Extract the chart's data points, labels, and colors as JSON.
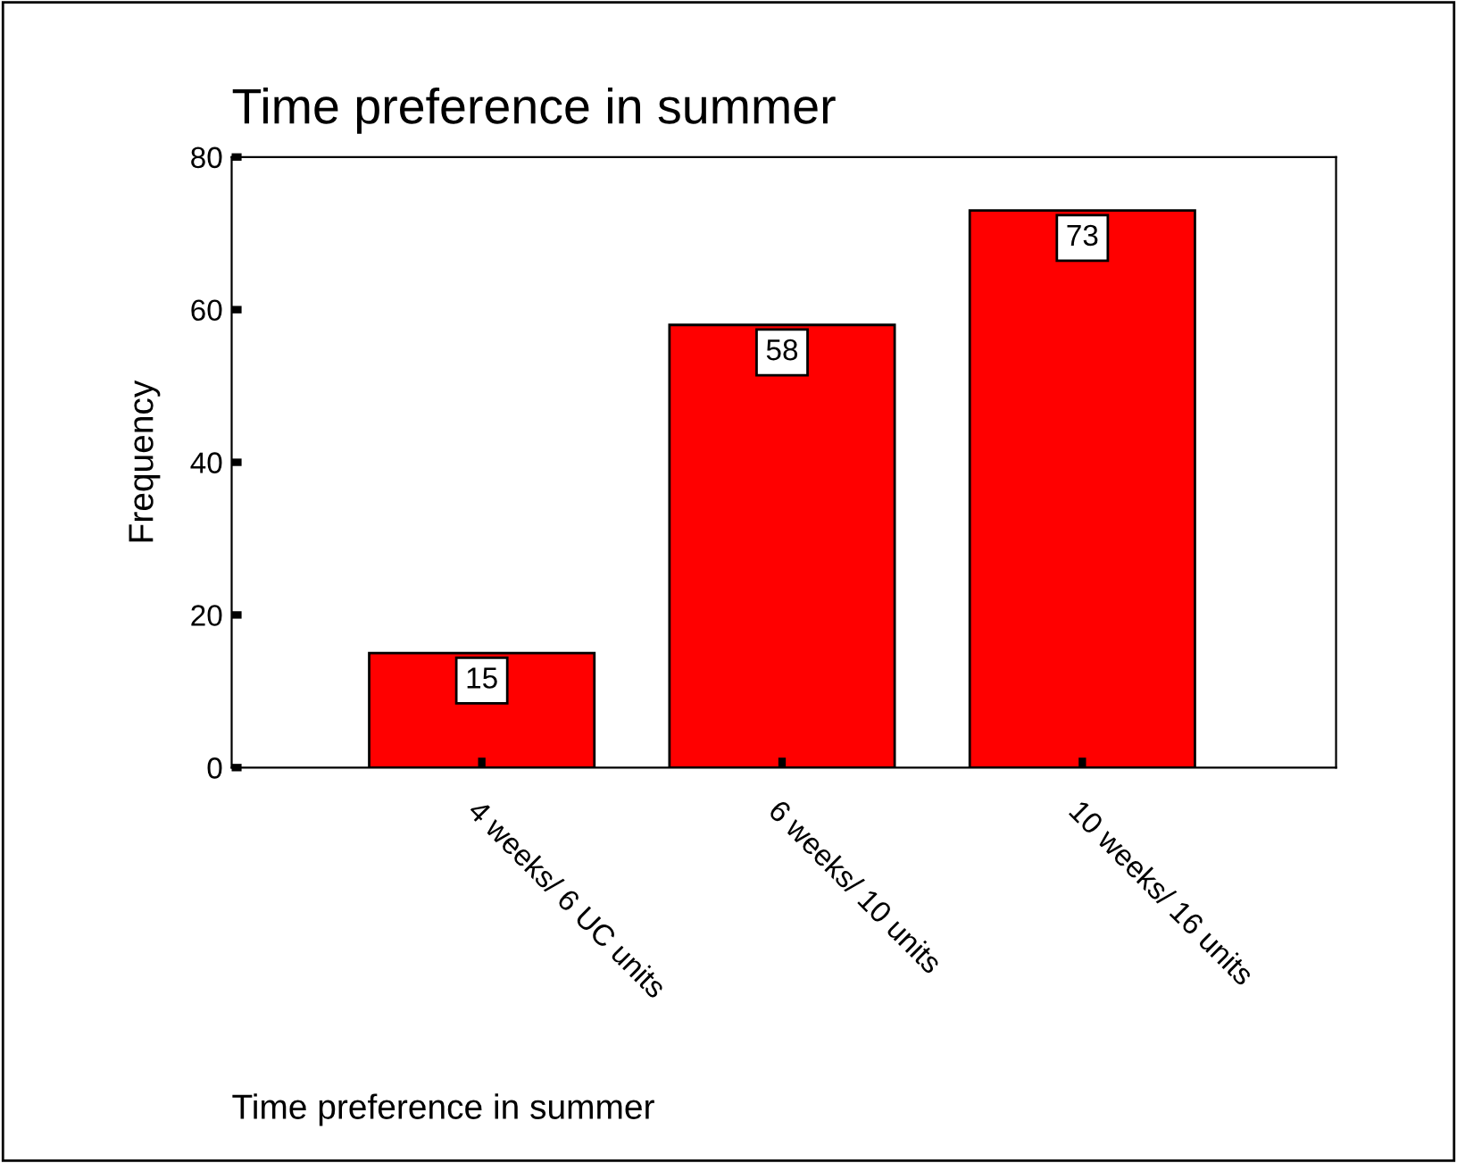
{
  "chart_data": {
    "type": "bar",
    "title": "Time preference in summer",
    "xlabel": "Time preference in summer",
    "ylabel": "Frequency",
    "categories": [
      "4 weeks/ 6 UC units",
      "6 weeks/ 10 units",
      "10 weeks/ 16 units"
    ],
    "values": [
      15,
      58,
      73
    ],
    "color": "#ff0000",
    "ylim": [
      0,
      80
    ],
    "yticks": [
      0,
      20,
      40,
      60,
      80
    ],
    "data_labels": true,
    "grid": false,
    "legend": false
  }
}
